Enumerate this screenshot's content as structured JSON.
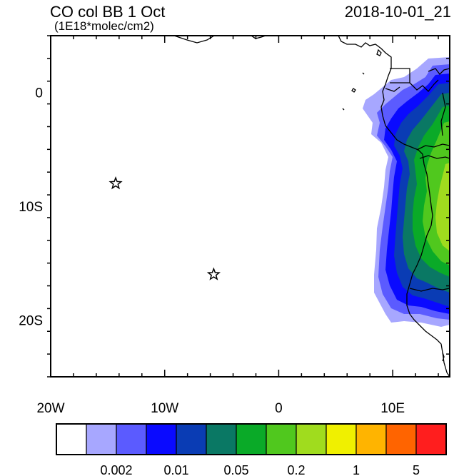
{
  "title": {
    "left": "CO col BB 1 Oct",
    "units": "(1E18*molec/cm2)",
    "right": "2018-10-01_21"
  },
  "axes": {
    "x_ticks": [
      {
        "lon": -20,
        "label": "20W"
      },
      {
        "lon": -10,
        "label": "10W"
      },
      {
        "lon": 0,
        "label": "0"
      },
      {
        "lon": 10,
        "label": "10E"
      }
    ],
    "y_ticks": [
      {
        "lat": 0,
        "label": "0"
      },
      {
        "lat": -10,
        "label": "10S"
      },
      {
        "lat": -20,
        "label": "20S"
      }
    ],
    "lon_range": [
      -20,
      15
    ],
    "lat_range": [
      -25,
      5
    ]
  },
  "markers": [
    {
      "name": "star-marker-1",
      "lon": -14.3,
      "lat": -8.0
    },
    {
      "name": "star-marker-2",
      "lon": -5.7,
      "lat": -16.0
    }
  ],
  "colorbar": {
    "colors": [
      "#ffffff",
      "#a7a7ff",
      "#5b5bff",
      "#0a0aff",
      "#0a3cb4",
      "#0a7864",
      "#0aaa28",
      "#50c81e",
      "#a0dc1e",
      "#f0f000",
      "#ffb400",
      "#ff6400",
      "#ff1e1e"
    ],
    "labels": [
      {
        "boundary": 2,
        "text": "0.002"
      },
      {
        "boundary": 4,
        "text": "0.01"
      },
      {
        "boundary": 6,
        "text": "0.05"
      },
      {
        "boundary": 8,
        "text": "0.2"
      },
      {
        "boundary": 10,
        "text": "1"
      },
      {
        "boundary": 12,
        "text": "5"
      }
    ]
  }
}
